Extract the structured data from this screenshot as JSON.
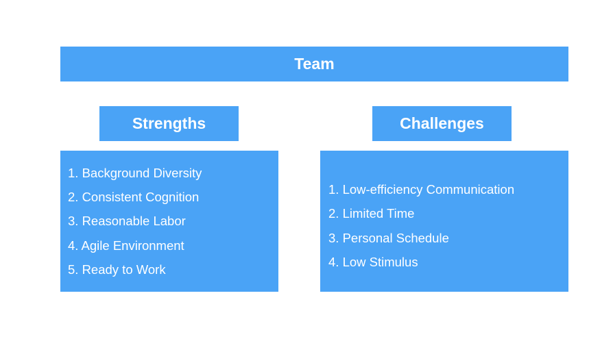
{
  "team": {
    "title": "Team"
  },
  "strengths": {
    "title": "Strengths",
    "items": [
      "1. Background Diversity",
      "2. Consistent Cognition",
      "3. Reasonable Labor",
      "4. Agile Environment",
      "5. Ready to Work"
    ]
  },
  "challenges": {
    "title": "Challenges",
    "items": [
      "1. Low-efficiency Communication",
      "2. Limited Time",
      "3. Personal Schedule",
      "4. Low Stimulus"
    ]
  },
  "colors": {
    "box_fill": "#4aa3f6",
    "text": "#ffffff",
    "background": "#ffffff"
  }
}
